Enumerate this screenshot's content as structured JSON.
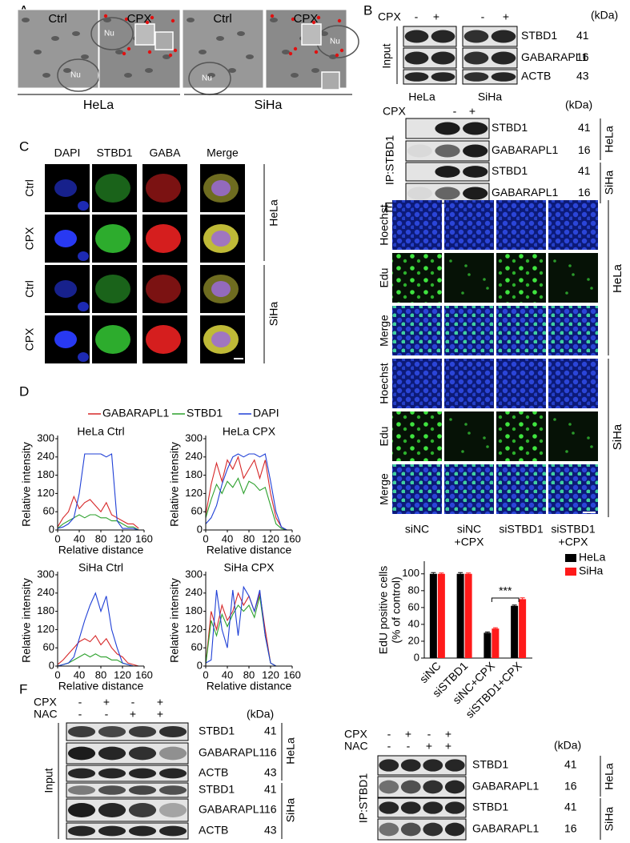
{
  "panels": {
    "A": {
      "letter": "A",
      "images": [
        {
          "label": "Ctrl",
          "nu": "Nu"
        },
        {
          "label": "CPX",
          "nu": "Nu"
        },
        {
          "label": "Ctrl",
          "nu": "Nu"
        },
        {
          "label": "CPX",
          "nu": "Nu"
        }
      ],
      "groups": [
        "HeLa",
        "SiHa"
      ]
    },
    "B": {
      "letter": "B",
      "input": {
        "cpx_label": "CPX",
        "signs": [
          "-",
          "+",
          "-",
          "+"
        ],
        "kda": "(kDa)",
        "side": "Input",
        "rows": [
          {
            "label": "STBD1",
            "kda": 41
          },
          {
            "label": "GABARAPL1",
            "kda": 16
          },
          {
            "label": "ACTB",
            "kda": 43
          }
        ],
        "groups": [
          "HeLa",
          "SiHa"
        ]
      },
      "ip": {
        "cpx_label": "CPX",
        "signs": [
          "-",
          "+"
        ],
        "kda": "(kDa)",
        "side": "IP:STBD1",
        "rows": [
          {
            "label": "STBD1",
            "kda": 41
          },
          {
            "label": "GABARAPL1",
            "kda": 16
          },
          {
            "label": "STBD1",
            "kda": 41
          },
          {
            "label": "GABARAPL1",
            "kda": 16
          }
        ],
        "groups": [
          "HeLa",
          "SiHa"
        ]
      }
    },
    "C": {
      "letter": "C",
      "columns": [
        "DAPI",
        "STBD1",
        "GABA",
        "Merge"
      ],
      "rows": [
        "Ctrl",
        "CPX",
        "Ctrl",
        "CPX"
      ],
      "groups": [
        "HeLa",
        "SiHa"
      ]
    },
    "D": {
      "letter": "D"
    },
    "E": {
      "letter": "E",
      "rows": [
        "Hoechst",
        "Edu",
        "Merge",
        "Hoechst",
        "Edu",
        "Merge"
      ],
      "columns": [
        [
          "siNC"
        ],
        [
          "siNC",
          "+CPX"
        ],
        [
          "siSTBD1"
        ],
        [
          "siSTBD1",
          "+CPX"
        ]
      ],
      "groups": [
        "HeLa",
        "SiHa"
      ]
    },
    "F": {
      "letter": "F",
      "input": {
        "cpx_label": "CPX",
        "nac_label": "NAC",
        "cpx_signs": [
          "-",
          "+",
          "-",
          "+"
        ],
        "nac_signs": [
          "-",
          "-",
          "+",
          "+"
        ],
        "kda": "(kDa)",
        "side": "Input",
        "rows": [
          {
            "label": "STBD1",
            "kda": 41
          },
          {
            "label": "GABARAPL1",
            "kda": 16
          },
          {
            "label": "ACTB",
            "kda": 43
          },
          {
            "label": "STBD1",
            "kda": 41
          },
          {
            "label": "GABARAPL1",
            "kda": 16
          },
          {
            "label": "ACTB",
            "kda": 43
          }
        ],
        "groups": [
          "HeLa",
          "SiHa"
        ]
      },
      "ip": {
        "cpx_label": "CPX",
        "nac_label": "NAC",
        "cpx_signs": [
          "-",
          "+",
          "-",
          "+"
        ],
        "nac_signs": [
          "-",
          "-",
          "+",
          "+"
        ],
        "kda": "(kDa)",
        "side": "IP:STBD1",
        "rows": [
          {
            "label": "STBD1",
            "kda": 41
          },
          {
            "label": "GABARAPL1",
            "kda": 16
          },
          {
            "label": "STBD1",
            "kda": 41
          },
          {
            "label": "GABARAPL1",
            "kda": 16
          }
        ],
        "groups": [
          "HeLa",
          "SiHa"
        ]
      }
    }
  },
  "chart_data": [
    {
      "type": "line",
      "title": "HeLa Ctrl",
      "xlabel": "Relative distance",
      "ylabel": "Relative intensity",
      "x": [
        0,
        10,
        20,
        30,
        40,
        50,
        60,
        70,
        80,
        90,
        100,
        110,
        120,
        130,
        140,
        150
      ],
      "xlim": [
        0,
        160
      ],
      "xticks": [
        0,
        40,
        80,
        120,
        160
      ],
      "ylim": [
        0,
        300
      ],
      "yticks": [
        0,
        60,
        120,
        180,
        240,
        300
      ],
      "series": [
        {
          "name": "GABARAPL1",
          "color": "#d62728",
          "values": [
            10,
            40,
            60,
            110,
            70,
            90,
            100,
            80,
            60,
            90,
            50,
            40,
            30,
            20,
            20,
            5
          ]
        },
        {
          "name": "STBD1",
          "color": "#2ca02c",
          "values": [
            5,
            20,
            30,
            40,
            50,
            40,
            50,
            50,
            40,
            40,
            30,
            30,
            20,
            10,
            10,
            0
          ]
        },
        {
          "name": "DAPI",
          "color": "#1f3fd6",
          "values": [
            5,
            10,
            20,
            40,
            120,
            250,
            250,
            250,
            250,
            240,
            250,
            30,
            5,
            5,
            5,
            0
          ]
        }
      ]
    },
    {
      "type": "line",
      "title": "HeLa CPX",
      "xlabel": "Relative distance",
      "ylabel": "Relative intensity",
      "x": [
        0,
        10,
        20,
        30,
        40,
        50,
        60,
        70,
        80,
        90,
        100,
        110,
        120,
        130,
        140,
        150
      ],
      "xlim": [
        0,
        160
      ],
      "xticks": [
        0,
        40,
        80,
        120,
        160
      ],
      "ylim": [
        0,
        300
      ],
      "yticks": [
        0,
        60,
        120,
        180,
        240,
        300
      ],
      "series": [
        {
          "color": "#d62728",
          "values": [
            50,
            150,
            220,
            160,
            230,
            200,
            240,
            170,
            200,
            230,
            170,
            230,
            120,
            40,
            10,
            0
          ]
        },
        {
          "color": "#2ca02c",
          "values": [
            40,
            100,
            150,
            120,
            160,
            140,
            170,
            120,
            160,
            150,
            130,
            140,
            80,
            20,
            5,
            0
          ]
        },
        {
          "color": "#1f3fd6",
          "values": [
            20,
            40,
            80,
            150,
            200,
            240,
            250,
            240,
            250,
            250,
            240,
            250,
            160,
            60,
            10,
            0
          ]
        }
      ]
    },
    {
      "type": "line",
      "title": "SiHa Ctrl",
      "xlabel": "Relative distance",
      "ylabel": "Relative intensity",
      "x": [
        0,
        10,
        20,
        30,
        40,
        50,
        60,
        70,
        80,
        90,
        100,
        110,
        120,
        130,
        140,
        150
      ],
      "xlim": [
        0,
        160
      ],
      "xticks": [
        0,
        40,
        80,
        120,
        160
      ],
      "ylim": [
        0,
        300
      ],
      "yticks": [
        0,
        60,
        120,
        180,
        240,
        300
      ],
      "series": [
        {
          "color": "#d62728",
          "values": [
            5,
            20,
            40,
            60,
            80,
            90,
            80,
            100,
            70,
            90,
            60,
            40,
            30,
            10,
            5,
            0
          ]
        },
        {
          "color": "#2ca02c",
          "values": [
            0,
            5,
            10,
            20,
            30,
            40,
            30,
            40,
            30,
            30,
            20,
            20,
            10,
            5,
            0,
            0
          ]
        },
        {
          "color": "#1f3fd6",
          "values": [
            0,
            5,
            10,
            30,
            90,
            150,
            200,
            240,
            180,
            230,
            120,
            60,
            10,
            5,
            0,
            0
          ]
        }
      ]
    },
    {
      "type": "line",
      "title": "SiHa CPX",
      "xlabel": "Relative distance",
      "ylabel": "Relative intensity",
      "x": [
        0,
        10,
        20,
        30,
        40,
        50,
        60,
        70,
        80,
        90,
        100,
        110,
        120,
        130
      ],
      "xlim": [
        0,
        160
      ],
      "xticks": [
        0,
        40,
        80,
        120,
        160
      ],
      "ylim": [
        0,
        300
      ],
      "yticks": [
        0,
        60,
        120,
        180,
        240,
        300
      ],
      "series": [
        {
          "color": "#d62728",
          "values": [
            5,
            180,
            120,
            200,
            150,
            180,
            240,
            200,
            230,
            180,
            240,
            120,
            10,
            0
          ]
        },
        {
          "color": "#2ca02c",
          "values": [
            5,
            150,
            100,
            170,
            130,
            170,
            200,
            180,
            200,
            160,
            230,
            100,
            10,
            0
          ]
        },
        {
          "color": "#1f3fd6",
          "values": [
            10,
            20,
            250,
            120,
            60,
            250,
            100,
            260,
            230,
            180,
            250,
            100,
            10,
            0
          ]
        }
      ]
    },
    {
      "type": "bar",
      "ylabel": [
        "EdU positive cells",
        "(% of control)"
      ],
      "categories": [
        "siNC",
        "siSTBD1",
        "siNC+CPX",
        "siSTBD1+CPX"
      ],
      "ylim": [
        0,
        115
      ],
      "yticks": [
        0,
        20,
        40,
        60,
        80,
        100
      ],
      "series": [
        {
          "name": "HeLa",
          "color": "#000000",
          "values": [
            100,
            100,
            30,
            62
          ],
          "errors": [
            1.5,
            1.5,
            1,
            1
          ]
        },
        {
          "name": "SiHa",
          "color": "#ff1a1a",
          "values": [
            100,
            100,
            35,
            70
          ],
          "errors": [
            1,
            1,
            1,
            1.5
          ]
        }
      ],
      "annotation": "***"
    }
  ]
}
